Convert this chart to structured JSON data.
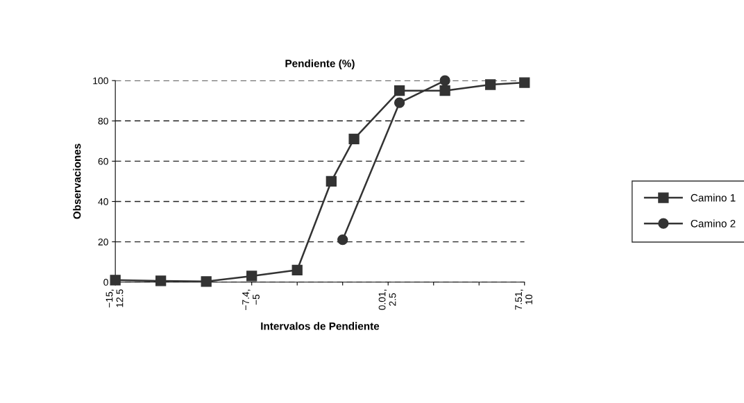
{
  "chart_data": {
    "type": "line",
    "title": "Pendiente (%)",
    "xlabel": "Intervalos de Pendiente",
    "ylabel": "Observaciones",
    "categories": [
      "−15,\n12.5",
      null,
      null,
      null,
      null,
      null,
      null,
      null,
      null,
      null,
      null,
      null,
      "−7.4,\n−5",
      null,
      null,
      null,
      null,
      null,
      null,
      null,
      null,
      null,
      null,
      null,
      "0.01,\n2.5",
      null,
      null,
      null,
      null,
      null,
      null,
      null,
      null,
      null,
      null,
      null,
      "7.51,\n10"
    ],
    "ylim": [
      0,
      100
    ],
    "yticks": [
      0,
      20,
      40,
      60,
      80,
      100
    ],
    "grid": "y",
    "line_style": "solid",
    "legend": "right",
    "series": [
      {
        "name": "Camino 1",
        "color": "#333333",
        "marker": "square",
        "values": [
          1,
          null,
          null,
          null,
          0.6,
          null,
          null,
          null,
          0.3,
          null,
          null,
          null,
          3,
          null,
          null,
          null,
          6,
          null,
          null,
          50,
          null,
          71,
          null,
          null,
          null,
          95,
          null,
          null,
          null,
          95,
          null,
          null,
          null,
          98,
          null,
          null,
          99
        ]
      },
      {
        "name": "Camino 2",
        "color": "#333333",
        "marker": "circle",
        "values": [
          null,
          null,
          null,
          null,
          null,
          null,
          null,
          null,
          null,
          null,
          null,
          null,
          null,
          null,
          null,
          null,
          null,
          null,
          null,
          null,
          21,
          null,
          null,
          null,
          null,
          89,
          null,
          null,
          null,
          100,
          null,
          null,
          null,
          null,
          null,
          null,
          null
        ]
      }
    ]
  }
}
